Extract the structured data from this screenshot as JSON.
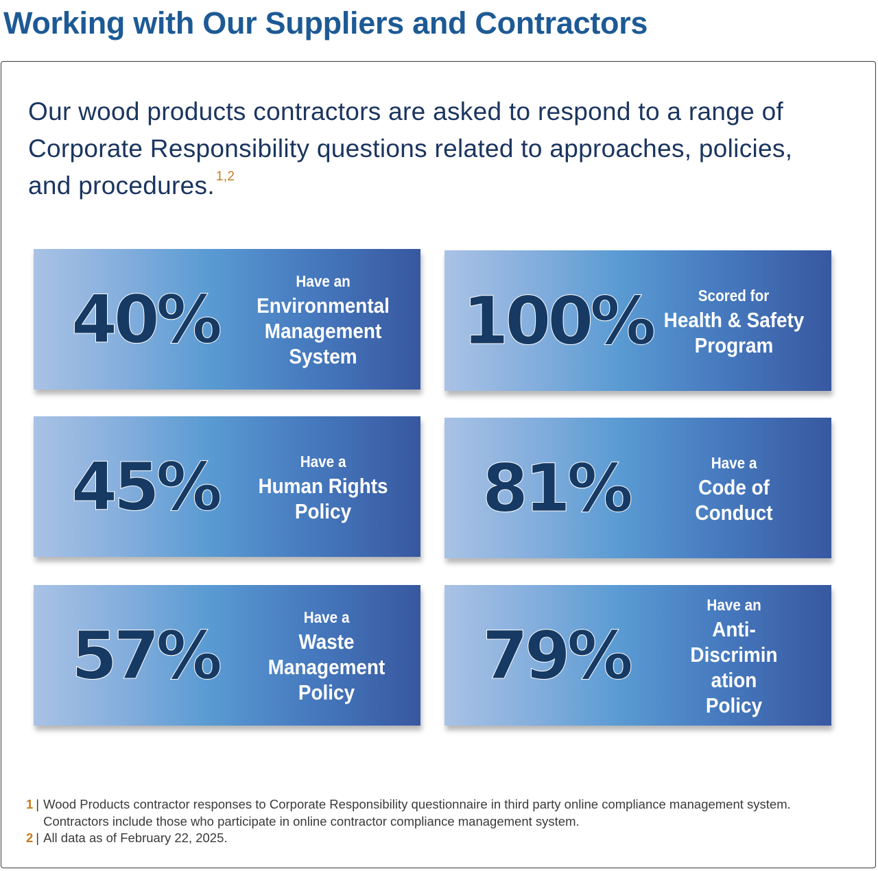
{
  "title": "Working with Our Suppliers and Contractors",
  "intro": {
    "text": "Our wood products contractors are asked to respond to a range of Corporate Responsibility questions related to approaches, policies, and procedures.",
    "superscript": "1,2"
  },
  "stats": [
    {
      "value": "40%",
      "prefix": "Have an",
      "label": "Environmental Management System"
    },
    {
      "value": "100%",
      "prefix": "Scored for",
      "label": "Health & Safety Program"
    },
    {
      "value": "45%",
      "prefix": "Have a",
      "label": "Human Rights Policy"
    },
    {
      "value": "81%",
      "prefix": "Have a",
      "label": "Code of Conduct"
    },
    {
      "value": "57%",
      "prefix": "Have a",
      "label": "Waste Management Policy"
    },
    {
      "value": "79%",
      "prefix": "Have an",
      "label": "Anti-Discrimination Policy"
    }
  ],
  "footnotes": [
    {
      "number": "1",
      "separator": "|",
      "text": "Wood Products contractor responses to Corporate Responsibility questionnaire in third party online compliance management system. Contractors include those who participate in online contractor compliance management system."
    },
    {
      "number": "2",
      "separator": "|",
      "text": "All data as of February 22, 2025."
    }
  ]
}
